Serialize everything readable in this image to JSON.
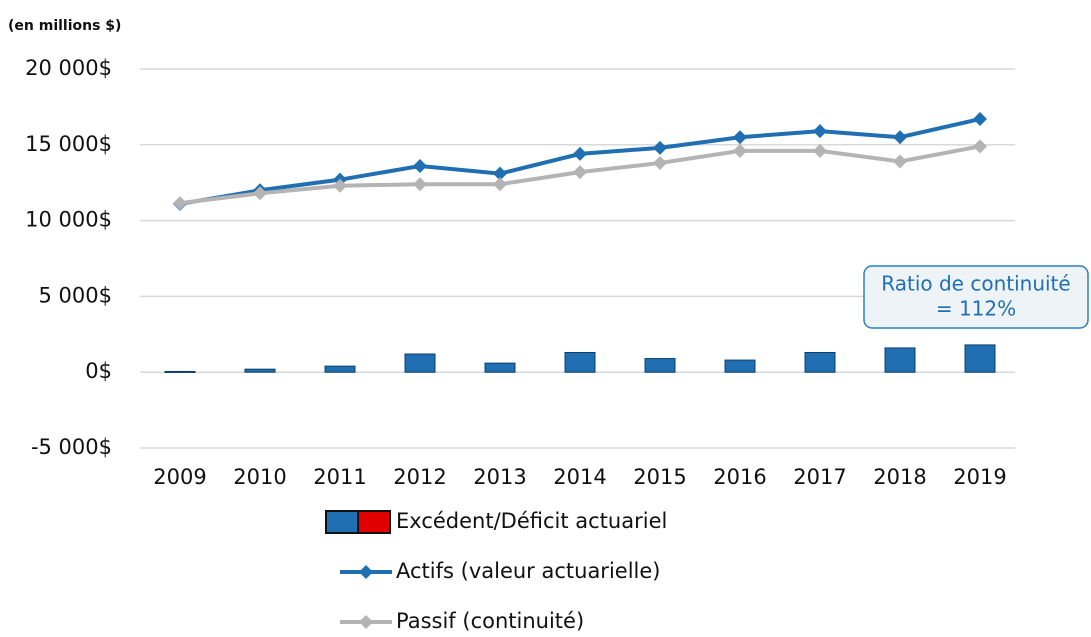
{
  "chart_data": {
    "type": "bar_line",
    "unit_label": "(en millions $)",
    "categories": [
      "2009",
      "2010",
      "2011",
      "2012",
      "2013",
      "2014",
      "2015",
      "2016",
      "2017",
      "2018",
      "2019"
    ],
    "series": [
      {
        "name": "Excédent/Déficit actuariel",
        "type": "bar",
        "color": "#1f6fb2",
        "negative_color": "#e00000",
        "values": [
          50,
          200,
          400,
          1200,
          600,
          1300,
          900,
          800,
          1300,
          1600,
          1800
        ]
      },
      {
        "name": "Actifs (valeur actuarielle)",
        "type": "line",
        "color": "#1f6fb2",
        "values": [
          11100,
          12000,
          12700,
          13600,
          13100,
          14400,
          14800,
          15500,
          15900,
          15500,
          16700
        ]
      },
      {
        "name": "Passif (continuité)",
        "type": "line",
        "color": "#b4b4b4",
        "values": [
          11150,
          11800,
          12300,
          12400,
          12400,
          13200,
          13800,
          14600,
          14600,
          13900,
          14900
        ]
      }
    ],
    "ylim": [
      -5000,
      20000
    ],
    "yticks": [
      {
        "value": -5000,
        "label": "-5 000$"
      },
      {
        "value": 0,
        "label": "0$"
      },
      {
        "value": 5000,
        "label": "5 000$"
      },
      {
        "value": 10000,
        "label": "10 000$"
      },
      {
        "value": 15000,
        "label": "15 000$"
      },
      {
        "value": 20000,
        "label": "20 000$"
      }
    ],
    "grid": true,
    "annotation": [
      "Ratio de continuité",
      "= 112%"
    ]
  }
}
